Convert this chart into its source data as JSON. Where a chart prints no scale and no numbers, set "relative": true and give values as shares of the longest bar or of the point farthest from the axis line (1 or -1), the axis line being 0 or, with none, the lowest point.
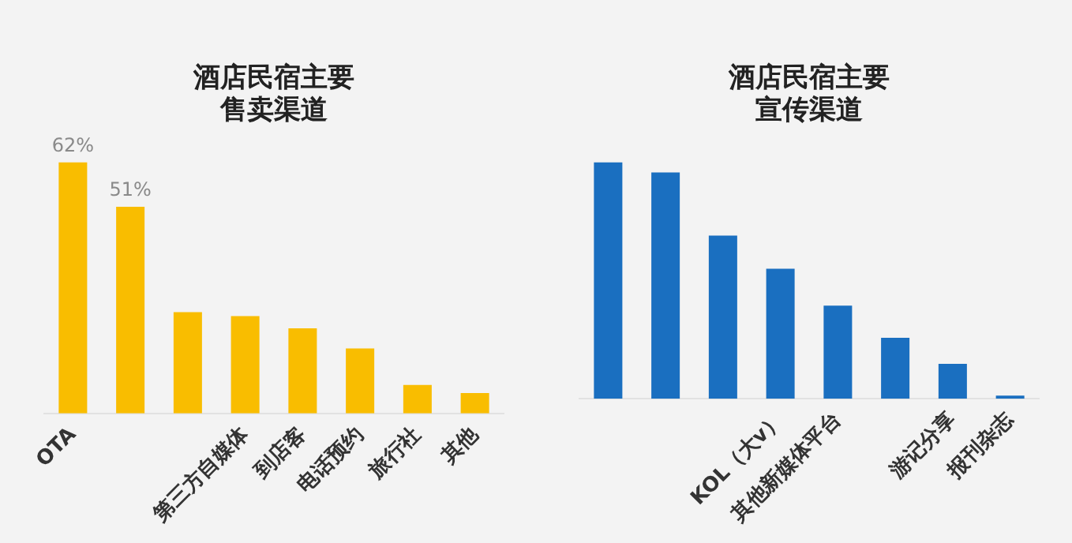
{
  "chart_data": [
    {
      "type": "bar",
      "title": "酒店民宿主要",
      "subtitle": "售卖渠道",
      "categories": [
        "OTA",
        null,
        null,
        "第三方自媒体",
        "到店客",
        "电话预约",
        "旅行社",
        "其他"
      ],
      "values": [
        62,
        51,
        25,
        24,
        21,
        16,
        7,
        5
      ],
      "value_labels": [
        "62%",
        "51%",
        null,
        null,
        null,
        null,
        null,
        null
      ],
      "color": "#f9bd00",
      "grid": false,
      "legend": false
    },
    {
      "type": "bar",
      "title": "酒店民宿主要",
      "subtitle": "宣传渠道",
      "categories": [
        null,
        null,
        null,
        "KOL（大v）",
        "其他新媒体平台",
        null,
        "游记分享",
        "报刊杂志"
      ],
      "values": [
        1,
        0.957,
        0.69,
        0.55,
        0.394,
        0.258,
        0.148,
        0.013
      ],
      "relative": true,
      "color": "#1a6fc0",
      "grid": false,
      "legend": false
    }
  ]
}
